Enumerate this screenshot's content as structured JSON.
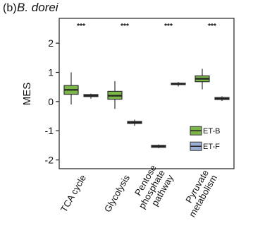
{
  "chart_data": {
    "type": "box",
    "panel_label": "(b)",
    "title": "B. dorei",
    "ylabel": "MES",
    "ylim": [
      -2.3,
      2.85
    ],
    "yticks": [
      -2,
      -1,
      0,
      1,
      2
    ],
    "categories": [
      "TCA cycle",
      "Glycolysis",
      "Pentose\nphosphate\npathway",
      "Pyruvate\nmetabolism"
    ],
    "significance": [
      "***",
      "***",
      "***",
      "***"
    ],
    "legend_position": "bottom-right",
    "grid": false,
    "series": [
      {
        "name": "ET-B",
        "color": "#7ab648",
        "boxes": [
          {
            "min": -0.1,
            "q1": 0.25,
            "median": 0.4,
            "q3": 0.55,
            "max": 1.0
          },
          {
            "min": -0.25,
            "q1": 0.08,
            "median": 0.2,
            "q3": 0.35,
            "max": 0.7
          },
          {
            "min": -1.6,
            "q1": -1.57,
            "median": -1.53,
            "q3": -1.5,
            "max": -1.47
          },
          {
            "min": 0.42,
            "q1": 0.68,
            "median": 0.78,
            "q3": 0.88,
            "max": 1.12
          }
        ]
      },
      {
        "name": "ET-F",
        "color": "#9aaed6",
        "boxes": [
          {
            "min": 0.1,
            "q1": 0.17,
            "median": 0.2,
            "q3": 0.24,
            "max": 0.27
          },
          {
            "min": -0.83,
            "q1": -0.75,
            "median": -0.72,
            "q3": -0.68,
            "max": -0.62
          },
          {
            "min": 0.52,
            "q1": 0.58,
            "median": 0.6,
            "q3": 0.63,
            "max": 0.67
          },
          {
            "min": 0.02,
            "q1": 0.07,
            "median": 0.1,
            "q3": 0.14,
            "max": 0.18
          }
        ]
      }
    ]
  }
}
